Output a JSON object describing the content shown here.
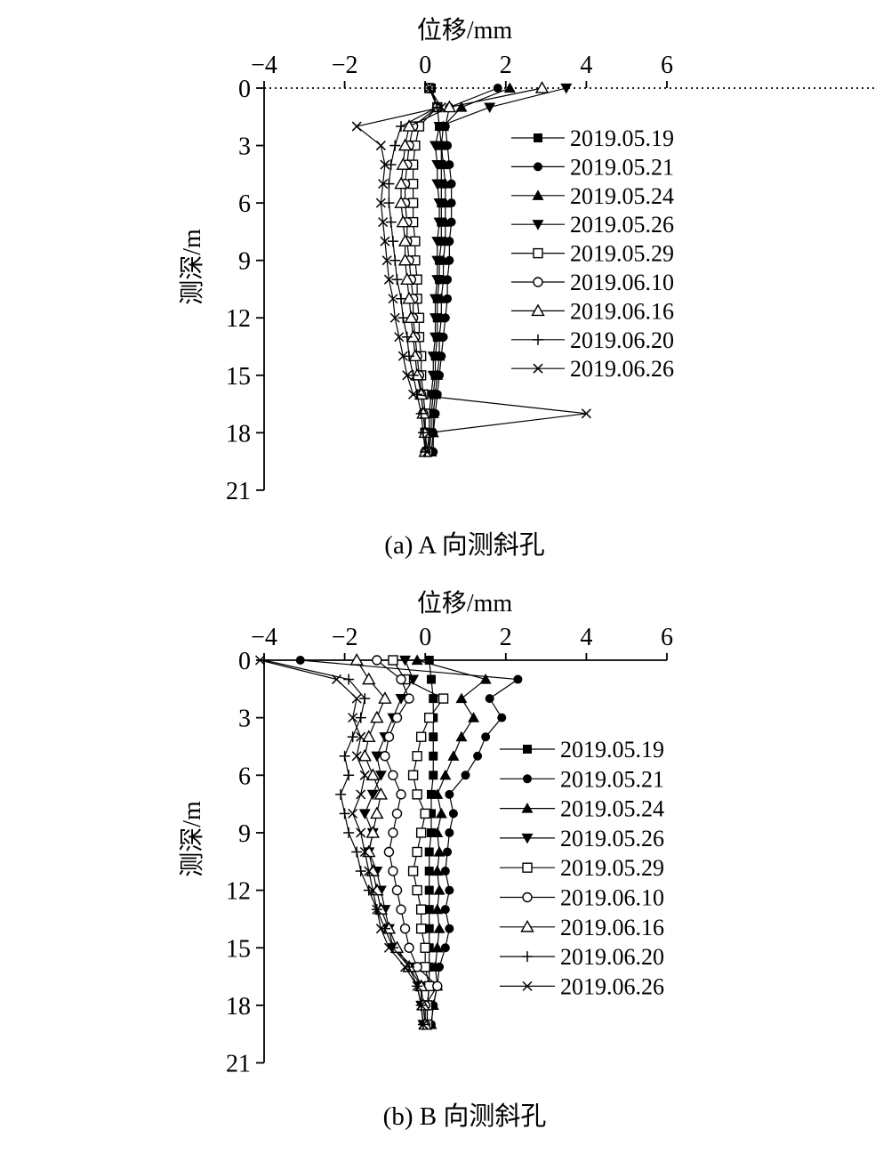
{
  "page": {
    "background": "#ffffff"
  },
  "colors": {
    "line": "#000000",
    "background": "#ffffff"
  },
  "chart_data": [
    {
      "type": "line",
      "xlabel": "位移/mm",
      "ylabel": "测深/m",
      "caption": "(a) A 向测斜孔",
      "xlim": [
        -4,
        6
      ],
      "x_ticks": [
        -4,
        -2,
        0,
        2,
        4,
        6
      ],
      "ylim": [
        0,
        21
      ],
      "y_ticks": [
        0,
        3,
        6,
        9,
        12,
        15,
        18,
        21
      ],
      "y_axis_direction": "down",
      "grid": false,
      "legend_position": "inside-right",
      "top_axis_style": "dotted",
      "depths": [
        0,
        1,
        2,
        3,
        4,
        5,
        6,
        7,
        8,
        9,
        10,
        11,
        12,
        13,
        14,
        15,
        16,
        17,
        18,
        19
      ],
      "series": [
        {
          "name": "2019.05.19",
          "marker": "square-filled",
          "values": [
            0.15,
            0.3,
            0.35,
            0.4,
            0.4,
            0.4,
            0.4,
            0.4,
            0.4,
            0.35,
            0.35,
            0.3,
            0.3,
            0.3,
            0.25,
            0.25,
            0.2,
            0.15,
            0.15,
            0.1
          ]
        },
        {
          "name": "2019.05.21",
          "marker": "circle-filled",
          "values": [
            1.8,
            0.6,
            0.5,
            0.55,
            0.6,
            0.65,
            0.65,
            0.65,
            0.6,
            0.6,
            0.55,
            0.55,
            0.5,
            0.45,
            0.4,
            0.35,
            0.3,
            0.25,
            0.2,
            0.2
          ]
        },
        {
          "name": "2019.05.24",
          "marker": "triangle-filled",
          "values": [
            2.1,
            0.9,
            0.45,
            0.4,
            0.45,
            0.5,
            0.5,
            0.5,
            0.5,
            0.45,
            0.45,
            0.4,
            0.4,
            0.35,
            0.35,
            0.3,
            0.25,
            0.2,
            0.2,
            0.15
          ]
        },
        {
          "name": "2019.05.26",
          "marker": "triangle-down-filled",
          "values": [
            3.5,
            1.6,
            0.35,
            0.25,
            0.3,
            0.3,
            0.35,
            0.35,
            0.3,
            0.3,
            0.3,
            0.25,
            0.25,
            0.25,
            0.2,
            0.2,
            0.15,
            0.1,
            0.1,
            0.1
          ]
        },
        {
          "name": "2019.05.29",
          "marker": "square-open",
          "values": [
            0.1,
            0.3,
            -0.15,
            -0.25,
            -0.3,
            -0.3,
            -0.3,
            -0.3,
            -0.25,
            -0.25,
            -0.2,
            -0.2,
            -0.15,
            -0.15,
            -0.1,
            -0.1,
            -0.05,
            0,
            0,
            0.05
          ]
        },
        {
          "name": "2019.06.10",
          "marker": "circle-open",
          "values": [
            0.1,
            0.3,
            -0.3,
            -0.4,
            -0.45,
            -0.5,
            -0.5,
            -0.45,
            -0.45,
            -0.4,
            -0.35,
            -0.3,
            -0.3,
            -0.25,
            -0.2,
            -0.15,
            -0.1,
            -0.05,
            0,
            0
          ]
        },
        {
          "name": "2019.06.16",
          "marker": "triangle-open",
          "values": [
            2.9,
            0.6,
            -0.4,
            -0.5,
            -0.55,
            -0.6,
            -0.6,
            -0.55,
            -0.5,
            -0.5,
            -0.45,
            -0.4,
            -0.35,
            -0.3,
            -0.25,
            -0.2,
            -0.1,
            -0.05,
            0,
            0
          ]
        },
        {
          "name": "2019.06.20",
          "marker": "plus",
          "values": [
            0.1,
            0.3,
            -0.6,
            -0.75,
            -0.85,
            -0.9,
            -0.9,
            -0.85,
            -0.8,
            -0.75,
            -0.7,
            -0.6,
            -0.55,
            -0.45,
            -0.4,
            -0.3,
            -0.2,
            -0.1,
            -0.05,
            0
          ]
        },
        {
          "name": "2019.06.26",
          "marker": "x",
          "values": [
            0.1,
            0.4,
            -1.7,
            -1.1,
            -1.0,
            -1.05,
            -1.1,
            -1.05,
            -1.0,
            -0.95,
            -0.9,
            -0.8,
            -0.75,
            -0.65,
            -0.55,
            -0.45,
            -0.3,
            4.0,
            0.1,
            0.05
          ]
        }
      ]
    },
    {
      "type": "line",
      "xlabel": "位移/mm",
      "ylabel": "测深/m",
      "caption": "(b) B 向测斜孔",
      "xlim": [
        -4,
        6
      ],
      "x_ticks": [
        -4,
        -2,
        0,
        2,
        4,
        6
      ],
      "ylim": [
        0,
        21
      ],
      "y_ticks": [
        0,
        3,
        6,
        9,
        12,
        15,
        18,
        21
      ],
      "y_axis_direction": "down",
      "grid": false,
      "legend_position": "inside-right",
      "top_axis_style": "solid",
      "depths": [
        0,
        1,
        2,
        3,
        4,
        5,
        6,
        7,
        8,
        9,
        10,
        11,
        12,
        13,
        14,
        15,
        16,
        17,
        18,
        19
      ],
      "series": [
        {
          "name": "2019.05.19",
          "marker": "square-filled",
          "values": [
            0.1,
            0.15,
            0.2,
            0.2,
            0.2,
            0.2,
            0.2,
            0.15,
            0.15,
            0.15,
            0.1,
            0.1,
            0.1,
            0.1,
            0.1,
            0.1,
            0.1,
            0.1,
            0.05,
            0.05
          ]
        },
        {
          "name": "2019.05.21",
          "marker": "circle-filled",
          "values": [
            -3.1,
            2.3,
            1.6,
            1.9,
            1.5,
            1.3,
            1.0,
            0.6,
            0.7,
            0.6,
            0.55,
            0.5,
            0.6,
            0.5,
            0.6,
            0.5,
            0.35,
            0.3,
            0.2,
            0.15
          ]
        },
        {
          "name": "2019.05.24",
          "marker": "triangle-filled",
          "values": [
            -0.2,
            1.5,
            0.9,
            1.2,
            0.9,
            0.7,
            0.5,
            0.3,
            0.4,
            0.3,
            0.35,
            0.3,
            0.35,
            0.3,
            0.35,
            0.3,
            0.25,
            0.3,
            0.2,
            0.15
          ]
        },
        {
          "name": "2019.05.26",
          "marker": "triangle-down-filled",
          "values": [
            -0.5,
            -0.3,
            -0.6,
            -0.8,
            -1.0,
            -1.2,
            -1.1,
            -1.3,
            -1.5,
            -1.3,
            -1.4,
            -1.2,
            -1.1,
            -1.0,
            -0.9,
            -0.8,
            -0.3,
            -0.1,
            -0.1,
            -0.05
          ]
        },
        {
          "name": "2019.05.29",
          "marker": "square-open",
          "values": [
            -0.8,
            -0.5,
            0.45,
            0.1,
            -0.1,
            -0.2,
            -0.3,
            -0.2,
            0.0,
            -0.1,
            -0.2,
            -0.3,
            -0.2,
            -0.1,
            -0.1,
            0.0,
            0.0,
            0.1,
            0.05,
            0.05
          ]
        },
        {
          "name": "2019.06.10",
          "marker": "circle-open",
          "values": [
            -1.2,
            -0.6,
            -0.4,
            -0.7,
            -0.9,
            -1.0,
            -0.8,
            -0.6,
            -0.7,
            -0.8,
            -0.9,
            -0.8,
            -0.7,
            -0.6,
            -0.5,
            -0.4,
            -0.2,
            0.3,
            0.0,
            0.0
          ]
        },
        {
          "name": "2019.06.16",
          "marker": "triangle-open",
          "values": [
            -1.7,
            -1.4,
            -1.0,
            -1.2,
            -1.4,
            -1.5,
            -1.3,
            -1.1,
            -1.2,
            -1.3,
            -1.4,
            -1.3,
            -1.2,
            -1.1,
            -0.9,
            -0.7,
            -0.4,
            -0.1,
            -0.05,
            0
          ]
        },
        {
          "name": "2019.06.20",
          "marker": "plus",
          "values": [
            -4.0,
            -1.9,
            -1.5,
            -1.6,
            -1.8,
            -2.0,
            -1.9,
            -2.1,
            -2.0,
            -1.9,
            -1.7,
            -1.6,
            -1.4,
            -1.2,
            -1.0,
            -0.8,
            -0.4,
            -0.2,
            -0.1,
            -0.05
          ]
        },
        {
          "name": "2019.06.26",
          "marker": "x",
          "values": [
            -4.1,
            -2.2,
            -1.7,
            -1.8,
            -1.6,
            -1.7,
            -1.5,
            -1.6,
            -1.8,
            -1.6,
            -1.5,
            -1.4,
            -1.3,
            -1.2,
            -1.1,
            -0.9,
            -0.5,
            -0.2,
            -0.1,
            -0.05
          ]
        }
      ]
    }
  ]
}
